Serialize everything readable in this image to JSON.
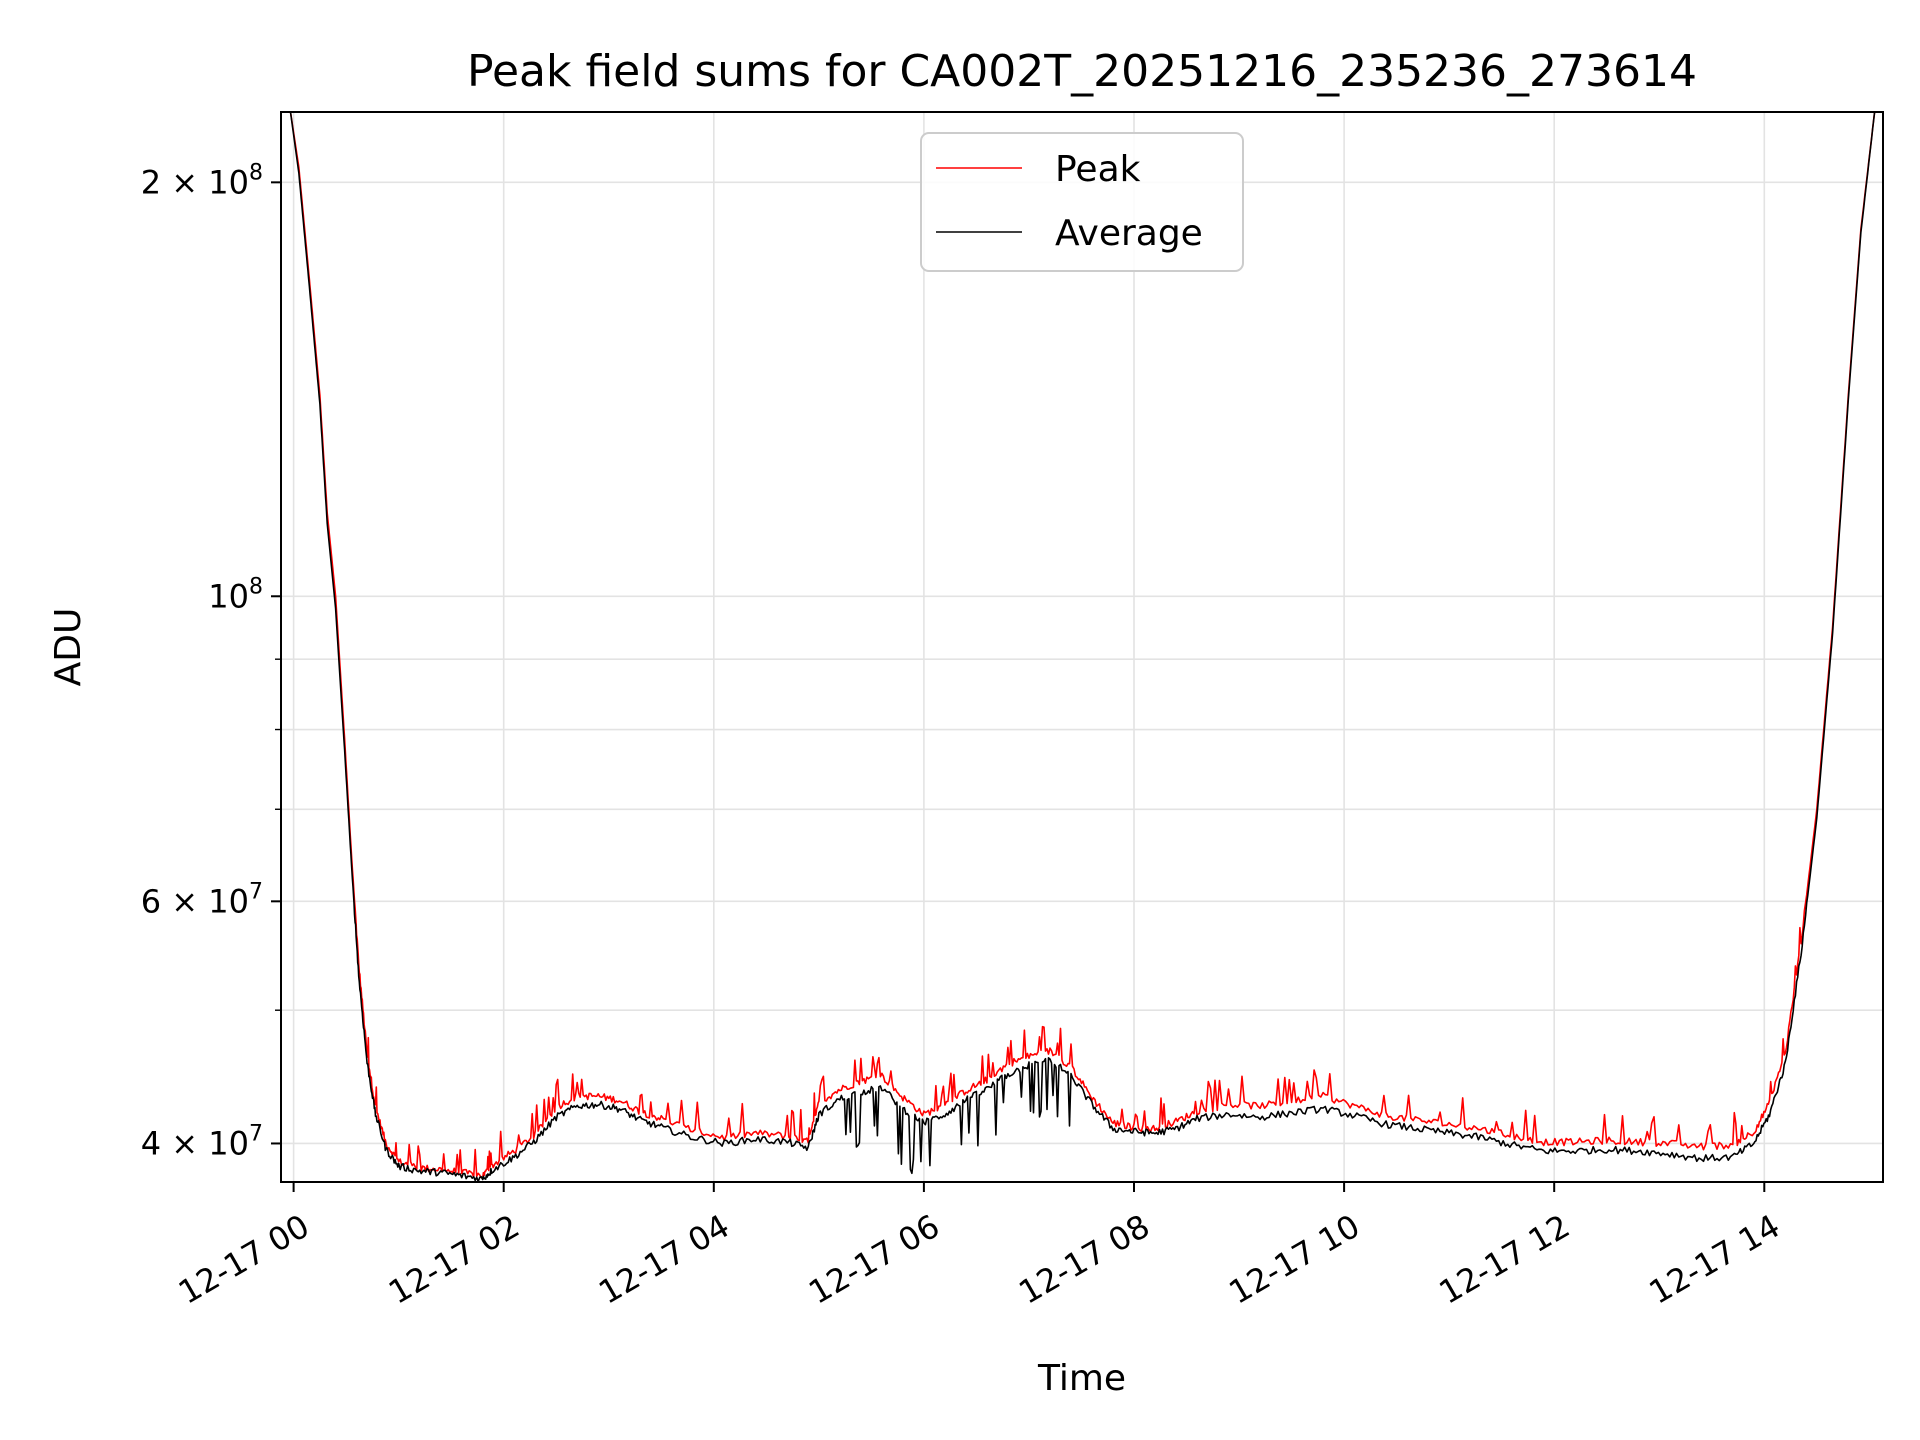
{
  "chart_data": {
    "type": "line",
    "title": "Peak field sums for CA002T_20251216_235236_273614",
    "xlabel": "Time",
    "ylabel": "ADU",
    "yscale": "log",
    "grid": true,
    "legend_position": "top-center",
    "x_unit": "hours since 2025-12-17 00:00",
    "xlim": [
      -0.12,
      15.13
    ],
    "ylim": [
      37500000,
      225000000
    ],
    "x_ticks": [
      {
        "value": 0,
        "label": "12-17 00"
      },
      {
        "value": 2,
        "label": "12-17 02"
      },
      {
        "value": 4,
        "label": "12-17 04"
      },
      {
        "value": 6,
        "label": "12-17 06"
      },
      {
        "value": 8,
        "label": "12-17 08"
      },
      {
        "value": 10,
        "label": "12-17 10"
      },
      {
        "value": 12,
        "label": "12-17 12"
      },
      {
        "value": 14,
        "label": "12-17 14"
      }
    ],
    "y_major_ticks": [
      {
        "value": 40000000,
        "mantissa": "4",
        "exponent": "7"
      },
      {
        "value": 60000000,
        "mantissa": "6",
        "exponent": "7"
      },
      {
        "value": 100000000,
        "mantissa": "",
        "exponent": "8"
      },
      {
        "value": 200000000,
        "mantissa": "2",
        "exponent": "8"
      }
    ],
    "y_minor_ticks": [
      50000000,
      70000000,
      80000000,
      90000000
    ],
    "series": [
      {
        "name": "Peak",
        "color": "#ff0000",
        "points": [
          [
            -0.03,
            225000000
          ],
          [
            0.05,
            205000000
          ],
          [
            0.15,
            170000000
          ],
          [
            0.25,
            140000000
          ],
          [
            0.32,
            115000000
          ],
          [
            0.4,
            100000000
          ],
          [
            0.48,
            80000000
          ],
          [
            0.55,
            65000000
          ],
          [
            0.62,
            54000000
          ],
          [
            0.7,
            46500000
          ],
          [
            0.78,
            42500000
          ],
          [
            0.88,
            40000000
          ],
          [
            1.0,
            38800000
          ],
          [
            1.2,
            38400000
          ],
          [
            1.4,
            38300000
          ],
          [
            1.6,
            38100000
          ],
          [
            1.8,
            37900000
          ],
          [
            1.9,
            38600000
          ],
          [
            2.1,
            39500000
          ],
          [
            2.3,
            40600000
          ],
          [
            2.5,
            42500000
          ],
          [
            2.7,
            43300000
          ],
          [
            2.9,
            43300000
          ],
          [
            3.1,
            43000000
          ],
          [
            3.3,
            42200000
          ],
          [
            3.5,
            41700000
          ],
          [
            3.8,
            40900000
          ],
          [
            4.1,
            40400000
          ],
          [
            4.4,
            40700000
          ],
          [
            4.7,
            40500000
          ],
          [
            4.9,
            40100000
          ],
          [
            5.0,
            42800000
          ],
          [
            5.2,
            43800000
          ],
          [
            5.4,
            44400000
          ],
          [
            5.6,
            44800000
          ],
          [
            5.8,
            43200000
          ],
          [
            6.0,
            42000000
          ],
          [
            6.2,
            42700000
          ],
          [
            6.4,
            43700000
          ],
          [
            6.6,
            44500000
          ],
          [
            6.8,
            45700000
          ],
          [
            7.0,
            46300000
          ],
          [
            7.2,
            46700000
          ],
          [
            7.4,
            45500000
          ],
          [
            7.6,
            43200000
          ],
          [
            7.8,
            41400000
          ],
          [
            8.0,
            41100000
          ],
          [
            8.2,
            41000000
          ],
          [
            8.4,
            41500000
          ],
          [
            8.6,
            42200000
          ],
          [
            8.9,
            42700000
          ],
          [
            9.2,
            42600000
          ],
          [
            9.5,
            42900000
          ],
          [
            9.8,
            43300000
          ],
          [
            10.1,
            42600000
          ],
          [
            10.4,
            41900000
          ],
          [
            10.7,
            41600000
          ],
          [
            11.0,
            41300000
          ],
          [
            11.3,
            41000000
          ],
          [
            11.6,
            40500000
          ],
          [
            11.9,
            40100000
          ],
          [
            12.2,
            40100000
          ],
          [
            12.5,
            40200000
          ],
          [
            12.8,
            40100000
          ],
          [
            13.1,
            40000000
          ],
          [
            13.4,
            39800000
          ],
          [
            13.7,
            39900000
          ],
          [
            13.9,
            40800000
          ],
          [
            14.05,
            42800000
          ],
          [
            14.2,
            46500000
          ],
          [
            14.35,
            56000000
          ],
          [
            14.5,
            70000000
          ],
          [
            14.65,
            95000000
          ],
          [
            14.8,
            140000000
          ],
          [
            14.92,
            185000000
          ],
          [
            15.05,
            225000000
          ]
        ]
      },
      {
        "name": "Average",
        "color": "#000000",
        "points": [
          [
            -0.03,
            225000000
          ],
          [
            0.05,
            203000000
          ],
          [
            0.15,
            168000000
          ],
          [
            0.25,
            138000000
          ],
          [
            0.32,
            113000000
          ],
          [
            0.4,
            98000000
          ],
          [
            0.48,
            78500000
          ],
          [
            0.55,
            64000000
          ],
          [
            0.62,
            53000000
          ],
          [
            0.7,
            45800000
          ],
          [
            0.78,
            42000000
          ],
          [
            0.88,
            39600000
          ],
          [
            1.0,
            38500000
          ],
          [
            1.2,
            38200000
          ],
          [
            1.4,
            38100000
          ],
          [
            1.6,
            37900000
          ],
          [
            1.8,
            37700000
          ],
          [
            1.9,
            38300000
          ],
          [
            2.1,
            39100000
          ],
          [
            2.3,
            40200000
          ],
          [
            2.5,
            41800000
          ],
          [
            2.7,
            42600000
          ],
          [
            2.9,
            42700000
          ],
          [
            3.1,
            42400000
          ],
          [
            3.3,
            41600000
          ],
          [
            3.5,
            41100000
          ],
          [
            3.8,
            40400000
          ],
          [
            4.1,
            40000000
          ],
          [
            4.4,
            40300000
          ],
          [
            4.7,
            40100000
          ],
          [
            4.9,
            39700000
          ],
          [
            5.0,
            42000000
          ],
          [
            5.2,
            43100000
          ],
          [
            5.4,
            43600000
          ],
          [
            5.6,
            43900000
          ],
          [
            5.8,
            42400000
          ],
          [
            6.0,
            41400000
          ],
          [
            6.2,
            42000000
          ],
          [
            6.4,
            43000000
          ],
          [
            6.6,
            43800000
          ],
          [
            6.8,
            44900000
          ],
          [
            7.0,
            45600000
          ],
          [
            7.2,
            46000000
          ],
          [
            7.4,
            44800000
          ],
          [
            7.6,
            42700000
          ],
          [
            7.8,
            41000000
          ],
          [
            8.0,
            40800000
          ],
          [
            8.2,
            40700000
          ],
          [
            8.4,
            41000000
          ],
          [
            8.6,
            41700000
          ],
          [
            8.9,
            42000000
          ],
          [
            9.2,
            41800000
          ],
          [
            9.5,
            42100000
          ],
          [
            9.8,
            42400000
          ],
          [
            10.1,
            41900000
          ],
          [
            10.4,
            41300000
          ],
          [
            10.7,
            41000000
          ],
          [
            11.0,
            40700000
          ],
          [
            11.3,
            40400000
          ],
          [
            11.6,
            39900000
          ],
          [
            11.9,
            39500000
          ],
          [
            12.2,
            39500000
          ],
          [
            12.5,
            39600000
          ],
          [
            12.8,
            39500000
          ],
          [
            13.1,
            39300000
          ],
          [
            13.4,
            39000000
          ],
          [
            13.7,
            39100000
          ],
          [
            13.9,
            40000000
          ],
          [
            14.05,
            42000000
          ],
          [
            14.2,
            45700000
          ],
          [
            14.35,
            55000000
          ],
          [
            14.5,
            69000000
          ],
          [
            14.65,
            94000000
          ],
          [
            14.8,
            139000000
          ],
          [
            14.92,
            184000000
          ],
          [
            15.05,
            225000000
          ]
        ]
      }
    ]
  }
}
